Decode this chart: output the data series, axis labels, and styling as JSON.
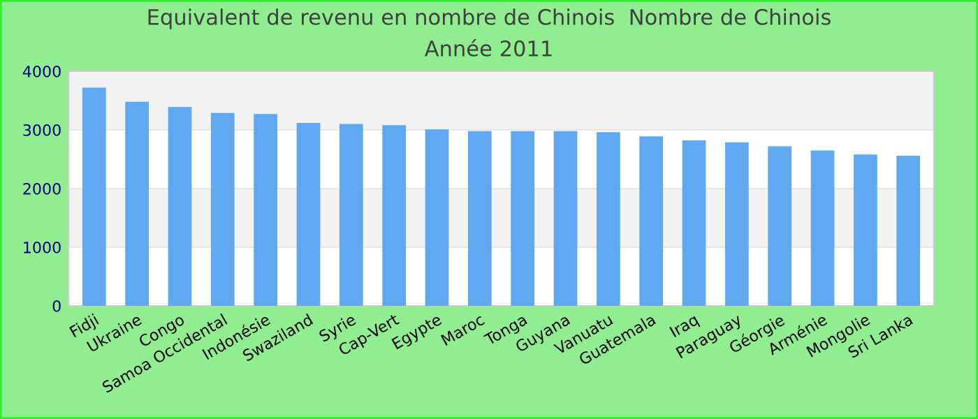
{
  "chart_data": {
    "type": "bar",
    "title": "Equivalent de revenu en nombre de Chinois  Nombre de Chinois",
    "subtitle": "Année 2011",
    "categories": [
      "Fidji",
      "Ukraine",
      "Congo",
      "Samoa Occidental",
      "Indonésie",
      "Swaziland",
      "Syrie",
      "Cap-Vert",
      "Egypte",
      "Maroc",
      "Tonga",
      "Guyana",
      "Vanuatu",
      "Guatemala",
      "Iraq",
      "Paraguay",
      "Géorgie",
      "Arménie",
      "Mongolie",
      "Sri Lanka"
    ],
    "values": [
      3720,
      3480,
      3390,
      3290,
      3270,
      3120,
      3100,
      3080,
      3010,
      2980,
      2980,
      2980,
      2960,
      2890,
      2820,
      2790,
      2720,
      2650,
      2580,
      2560
    ],
    "color": "#60a8f0",
    "ylim": [
      0,
      4000
    ],
    "yticks": [
      0,
      1000,
      2000,
      3000,
      4000
    ],
    "grid": "y",
    "legend": false
  }
}
